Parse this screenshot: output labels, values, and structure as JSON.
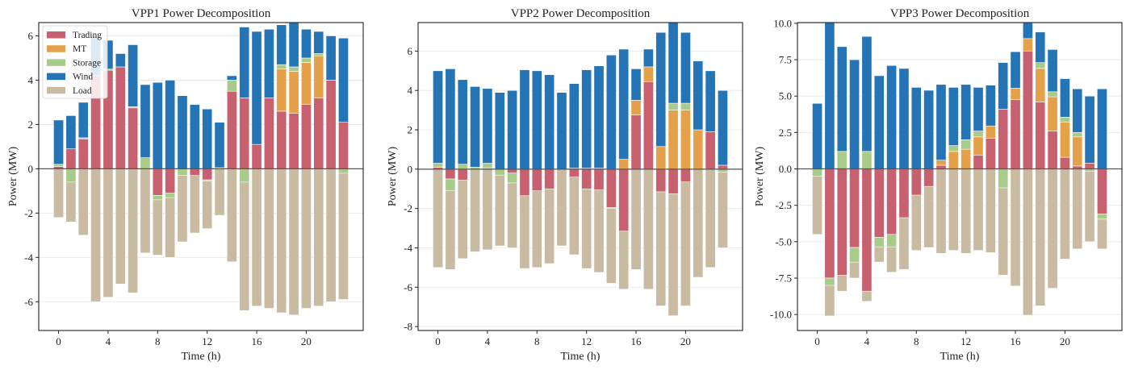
{
  "figure": {
    "series_order": [
      "Trading",
      "MT",
      "Storage",
      "Wind",
      "Load"
    ],
    "colors": {
      "Trading": "#C8616F",
      "MT": "#E5A04A",
      "Storage": "#A8CB8A",
      "Wind": "#2574B5",
      "Load": "#C8BBA2"
    },
    "legend": {
      "location": "upper-left of first panel",
      "entries": [
        "Trading",
        "MT",
        "Storage",
        "Wind",
        "Load"
      ]
    }
  },
  "chart_data": [
    {
      "type": "bar",
      "stacked": true,
      "title": "VPP1 Power Decomposition",
      "xlabel": "Time (h)",
      "ylabel": "Power (MW)",
      "x": [
        0,
        1,
        2,
        3,
        4,
        5,
        6,
        7,
        8,
        9,
        10,
        11,
        12,
        13,
        14,
        15,
        16,
        17,
        18,
        19,
        20,
        21,
        22,
        23
      ],
      "xticks": [
        0,
        4,
        8,
        12,
        16,
        20
      ],
      "xticklabels": [
        "0",
        "4",
        "8",
        "12",
        "16",
        "20"
      ],
      "yticks": [
        -6,
        -4,
        -2,
        0,
        2,
        4,
        6
      ],
      "yticklabels": [
        "-6",
        "-4",
        "-2",
        "0",
        "2",
        "4",
        "6"
      ],
      "xlim": [
        -1.6,
        24.6
      ],
      "ylim": [
        -7.3,
        6.6
      ],
      "grid": "horizontal",
      "legend": "top-left",
      "series": [
        {
          "name": "Trading",
          "values": [
            0.1,
            0.9,
            1.35,
            4.2,
            4.45,
            4.6,
            2.75,
            0,
            -1.2,
            -1.1,
            0,
            -0.3,
            -0.5,
            0,
            3.5,
            3.2,
            1.1,
            3.2,
            2.6,
            2.5,
            2.9,
            3.2,
            4.0,
            2.1
          ]
        },
        {
          "name": "MT",
          "values": [
            0,
            0,
            0,
            0,
            0,
            0,
            0,
            0,
            0,
            0,
            0,
            0,
            0,
            0,
            0,
            0,
            0,
            0,
            1.9,
            1.9,
            1.9,
            1.9,
            0,
            0
          ]
        },
        {
          "name": "Storage",
          "values": [
            0.1,
            -0.6,
            0.05,
            0,
            0.05,
            0,
            0.05,
            0.5,
            -0.2,
            -0.2,
            -0.3,
            0,
            -0.05,
            0.05,
            0.5,
            -0.6,
            0,
            0,
            0.2,
            0.2,
            0.2,
            0.1,
            0,
            -0.2
          ]
        },
        {
          "name": "Wind",
          "values": [
            2.0,
            1.5,
            1.6,
            1.8,
            1.3,
            0.6,
            2.8,
            3.3,
            3.9,
            4.0,
            3.3,
            2.9,
            2.7,
            2.05,
            0.2,
            3.2,
            5.1,
            3.1,
            1.8,
            2.0,
            1.3,
            1.0,
            2.0,
            3.8
          ]
        },
        {
          "name": "Load",
          "values": [
            -2.2,
            -2.4,
            -3.0,
            -6.0,
            -5.8,
            -5.2,
            -5.6,
            -3.8,
            -3.9,
            -4.0,
            -3.3,
            -2.9,
            -2.7,
            -2.1,
            -4.2,
            -6.4,
            -6.2,
            -6.3,
            -6.5,
            -6.6,
            -6.3,
            -6.2,
            -6.0,
            -5.9
          ]
        }
      ]
    },
    {
      "type": "bar",
      "stacked": true,
      "title": "VPP2 Power Decomposition",
      "xlabel": "Time (h)",
      "ylabel": "Power (MW)",
      "x": [
        0,
        1,
        2,
        3,
        4,
        5,
        6,
        7,
        8,
        9,
        10,
        11,
        12,
        13,
        14,
        15,
        16,
        17,
        18,
        19,
        20,
        21,
        22,
        23
      ],
      "xticks": [
        0,
        4,
        8,
        12,
        16,
        20
      ],
      "xticklabels": [
        "0",
        "4",
        "8",
        "12",
        "16",
        "20"
      ],
      "yticks": [
        -8,
        -6,
        -4,
        -2,
        0,
        2,
        4,
        6
      ],
      "yticklabels": [
        "-8",
        "-6",
        "-4",
        "-2",
        "0",
        "2",
        "4",
        "6"
      ],
      "xlim": [
        -1.6,
        24.6
      ],
      "ylim": [
        -8.2,
        7.45
      ],
      "grid": "horizontal",
      "legend": "none",
      "series": [
        {
          "name": "Trading",
          "values": [
            0.1,
            -0.5,
            -0.55,
            0,
            0.05,
            0,
            -0.2,
            -1.35,
            -1.1,
            -1.0,
            0,
            -0.4,
            -1.0,
            -1.05,
            -1.95,
            -3.15,
            2.75,
            4.45,
            -1.15,
            -1.25,
            -0.65,
            0,
            1.9,
            0.2
          ]
        },
        {
          "name": "MT",
          "values": [
            0,
            0,
            0,
            0,
            0,
            0,
            0,
            0,
            0,
            0,
            0,
            0,
            0,
            0,
            0,
            0.5,
            0.75,
            0.75,
            1.15,
            3.0,
            3.0,
            2.0,
            0,
            0
          ]
        },
        {
          "name": "Storage",
          "values": [
            0.2,
            -0.6,
            0.25,
            0.1,
            0.25,
            -0.3,
            -0.5,
            0,
            0,
            0,
            0,
            0.05,
            0.05,
            0.05,
            -0.05,
            0,
            0,
            0,
            0,
            0.35,
            0.35,
            0,
            0,
            -0.15
          ]
        },
        {
          "name": "Wind",
          "values": [
            4.7,
            5.1,
            4.3,
            4.1,
            3.8,
            3.9,
            4.0,
            5.05,
            5.0,
            4.8,
            3.9,
            4.3,
            5.0,
            5.2,
            5.8,
            5.6,
            1.6,
            0.9,
            5.8,
            4.1,
            3.6,
            3.5,
            3.1,
            3.8
          ]
        },
        {
          "name": "Load",
          "values": [
            -5.0,
            -5.1,
            -4.55,
            -4.2,
            -4.1,
            -3.9,
            -4.0,
            -5.05,
            -5.0,
            -4.8,
            -3.9,
            -4.35,
            -5.05,
            -5.25,
            -5.8,
            -6.1,
            -5.1,
            -6.1,
            -6.95,
            -7.45,
            -6.95,
            -5.5,
            -5.0,
            -4.0
          ]
        }
      ]
    },
    {
      "type": "bar",
      "stacked": true,
      "title": "VPP3 Power Decomposition",
      "xlabel": "Time (h)",
      "ylabel": "Power (MW)",
      "x": [
        0,
        1,
        2,
        3,
        4,
        5,
        6,
        7,
        8,
        9,
        10,
        11,
        12,
        13,
        14,
        15,
        16,
        17,
        18,
        19,
        20,
        21,
        22,
        23
      ],
      "xticks": [
        0,
        4,
        8,
        12,
        16,
        20
      ],
      "xticklabels": [
        "0",
        "4",
        "8",
        "12",
        "16",
        "20"
      ],
      "yticks": [
        -10,
        -7.5,
        -5,
        -2.5,
        0,
        2.5,
        5,
        7.5,
        10
      ],
      "yticklabels": [
        "-10.0",
        "-7.5",
        "-5.0",
        "-2.5",
        "0.0",
        "2.5",
        "5.0",
        "7.5",
        "10.0"
      ],
      "xlim": [
        -1.6,
        24.6
      ],
      "ylim": [
        -11.1,
        10.05
      ],
      "grid": "horizontal",
      "legend": "none",
      "series": [
        {
          "name": "Trading",
          "values": [
            0,
            -7.5,
            -7.3,
            -5.4,
            -8.4,
            -4.7,
            -4.5,
            -3.35,
            -1.8,
            -1.2,
            0.25,
            0,
            0,
            0.95,
            2.1,
            4.1,
            4.75,
            8.1,
            4.6,
            2.6,
            0.8,
            0.2,
            0.4,
            -3.1
          ]
        },
        {
          "name": "MT",
          "values": [
            0,
            0,
            0,
            0,
            0,
            0,
            0,
            0,
            0,
            0,
            0.35,
            1.2,
            1.35,
            1.25,
            0.85,
            0,
            0.8,
            0.85,
            2.3,
            2.35,
            2.4,
            2.0,
            0,
            0
          ]
        },
        {
          "name": "Storage",
          "values": [
            -0.5,
            -0.5,
            1.2,
            -1.0,
            1.2,
            -0.65,
            -0.85,
            0,
            0,
            0,
            0,
            0.4,
            0.65,
            0.4,
            0,
            -1.3,
            0,
            0,
            0.4,
            0.35,
            0.35,
            0.3,
            -0.15,
            -0.35
          ]
        },
        {
          "name": "Wind",
          "values": [
            4.5,
            10.1,
            7.2,
            7.5,
            7.9,
            6.4,
            7.1,
            6.9,
            5.6,
            5.4,
            5.2,
            4.0,
            3.8,
            3.0,
            2.8,
            3.2,
            2.5,
            1.1,
            2.1,
            2.9,
            2.65,
            3.0,
            4.6,
            5.5
          ]
        },
        {
          "name": "Load",
          "values": [
            -4.5,
            -10.1,
            -8.4,
            -7.5,
            -9.1,
            -6.4,
            -7.1,
            -6.9,
            -5.6,
            -5.4,
            -5.8,
            -5.6,
            -5.8,
            -5.6,
            -5.75,
            -7.3,
            -8.05,
            -10.05,
            -9.4,
            -8.2,
            -6.2,
            -5.5,
            -5.0,
            -5.5
          ]
        }
      ]
    }
  ]
}
